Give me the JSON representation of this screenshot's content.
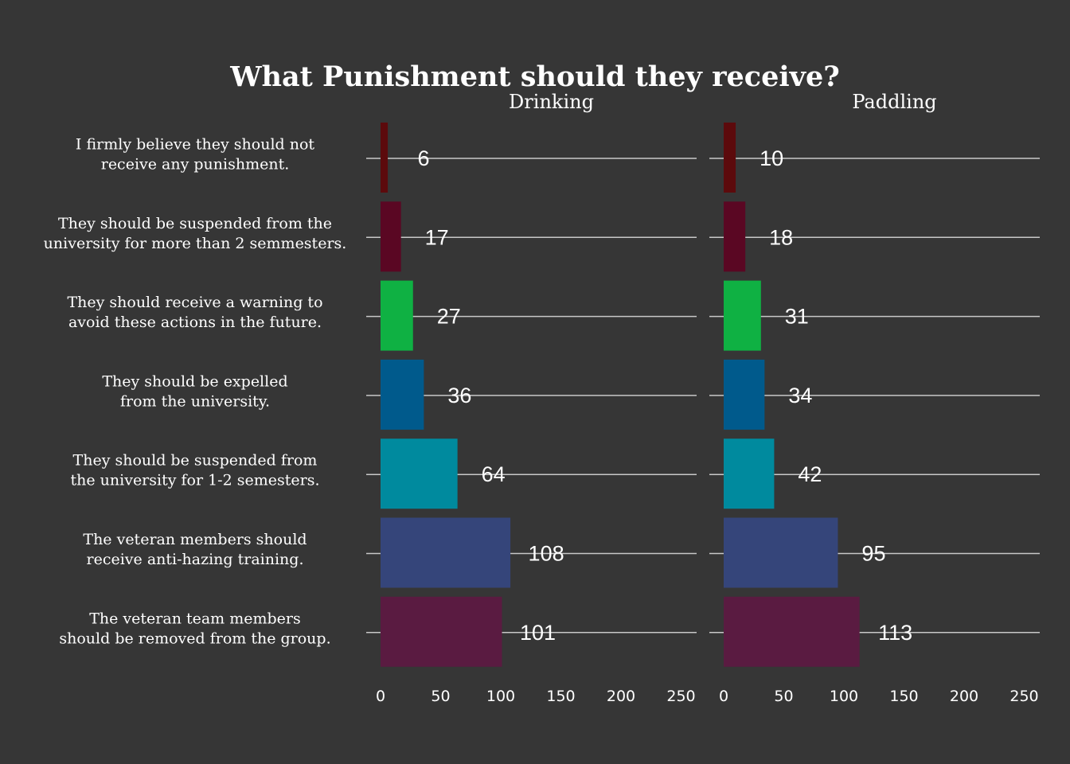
{
  "chart_data": {
    "type": "bar",
    "orientation": "horizontal",
    "title": "What Punishment should they receive?",
    "categories": [
      "I firmly believe they should not\nreceive any punishment.",
      "They should be suspended from the\nuniversity for more than 2 semmesters.",
      "They should receive a warning to\navoid these actions in the future.",
      "They should be expelled\nfrom the university.",
      "They should be suspended from\nthe university for 1-2 semesters.",
      "The veteran members should\nreceive anti-hazing training.",
      "The veteran team members\nshould be removed from the group."
    ],
    "bar_colors": [
      "#5c0a0c",
      "#5a0723",
      "#0fb143",
      "#005a8c",
      "#008a9e",
      "#35457a",
      "#5a1b41"
    ],
    "series": [
      {
        "name": "Drinking",
        "values": [
          6,
          17,
          27,
          36,
          64,
          108,
          101
        ]
      },
      {
        "name": "Paddling",
        "values": [
          10,
          18,
          31,
          34,
          42,
          95,
          113
        ]
      }
    ],
    "xlim": [
      0,
      250
    ],
    "xticks": [
      0,
      50,
      100,
      150,
      200,
      250
    ],
    "grid": "horizontal lines at each category",
    "colors": {
      "background": "#363636",
      "text": "#ffffff",
      "gridline": "#c8c8c8"
    }
  }
}
